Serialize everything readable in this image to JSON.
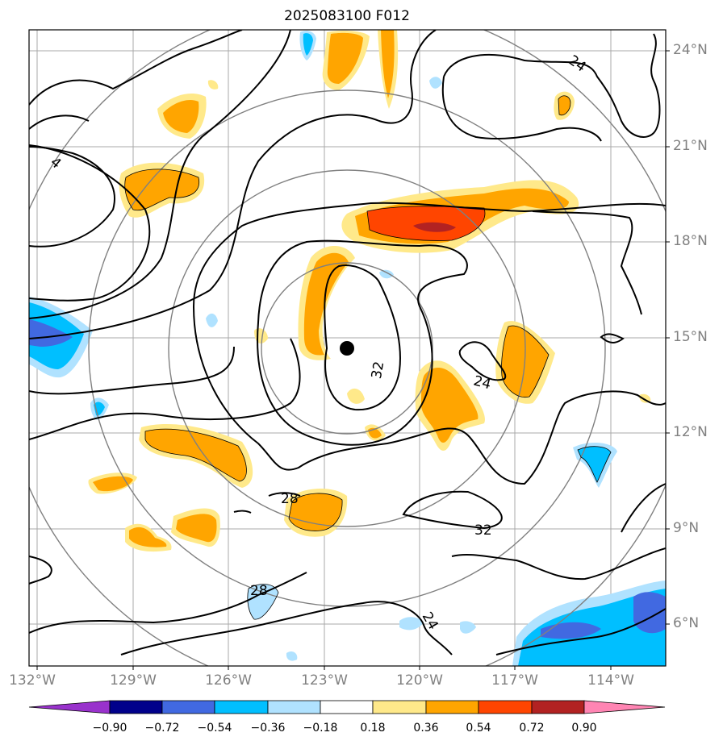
{
  "title": "2025083100 F012",
  "map": {
    "lat_labels": [
      "24°N",
      "21°N",
      "18°N",
      "15°N",
      "12°N",
      "9°N",
      "6°N"
    ],
    "lon_labels": [
      "132°W",
      "129°W",
      "126°W",
      "123°W",
      "120°W",
      "117°W",
      "114°W"
    ],
    "contour_labels": [
      "24",
      "4",
      "32",
      "24",
      "28",
      "32",
      "28",
      "24"
    ],
    "storm_center_marker": "black-dot"
  },
  "colorbar": {
    "ticks": [
      "−0.90",
      "−0.72",
      "−0.54",
      "−0.36",
      "−0.18",
      "0.18",
      "0.36",
      "0.54",
      "0.72",
      "0.90"
    ],
    "colors": [
      "#9932cc",
      "#00008b",
      "#4169e1",
      "#00bfff",
      "#b0e2ff",
      "#ffffff",
      "#ffe98a",
      "#ffa500",
      "#ff4500",
      "#b22222",
      "#ff85b3"
    ]
  }
}
